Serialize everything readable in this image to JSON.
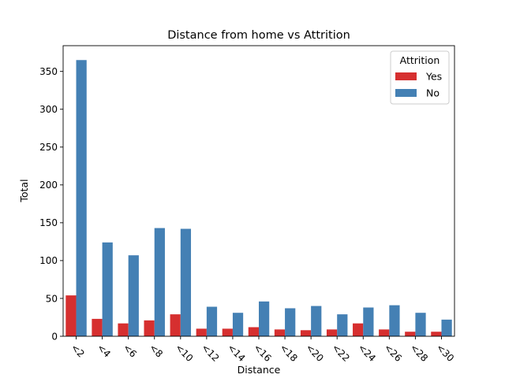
{
  "chart_data": {
    "type": "bar",
    "title": "Distance from home vs Attrition",
    "xlabel": "Distance",
    "ylabel": "Total",
    "categories": [
      "<2",
      "<4",
      "<6",
      "<8",
      "<10",
      "<12",
      "<14",
      "<16",
      "<18",
      "<20",
      "<22",
      "<24",
      "<26",
      "<28",
      "<30"
    ],
    "ylim": [
      0,
      384
    ],
    "yticks": [
      0,
      50,
      100,
      150,
      200,
      250,
      300,
      350
    ],
    "legend": {
      "title": "Attrition",
      "placement": "top-right"
    },
    "grid": false,
    "series": [
      {
        "name": "Yes",
        "color": "#d62f2f",
        "values": [
          54,
          23,
          17,
          21,
          29,
          10,
          10,
          12,
          9,
          8,
          9,
          17,
          9,
          6,
          6
        ]
      },
      {
        "name": "No",
        "color": "#4480b4",
        "values": [
          365,
          124,
          107,
          143,
          142,
          39,
          31,
          46,
          37,
          40,
          29,
          38,
          41,
          31,
          22
        ]
      }
    ]
  }
}
